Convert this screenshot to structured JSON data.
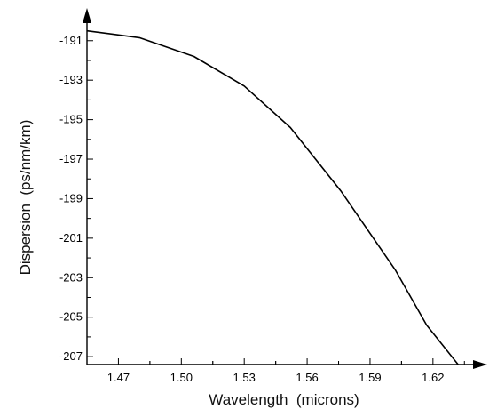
{
  "chart_data": {
    "type": "line",
    "title": "",
    "xlabel": "Wavelength  (microns)",
    "ylabel": "Dispersion  (ps/nm/km)",
    "xlim": [
      1.455,
      1.637
    ],
    "ylim": [
      -207.4,
      -190.2
    ],
    "xticks": [
      1.47,
      1.5,
      1.53,
      1.56,
      1.59,
      1.62
    ],
    "xtick_labels": [
      "1.47",
      "1.50",
      "1.53",
      "1.56",
      "1.59",
      "1.62"
    ],
    "yticks": [
      -191,
      -193,
      -195,
      -197,
      -199,
      -201,
      -203,
      -205,
      -207
    ],
    "ytick_labels": [
      "-191",
      "-193",
      "-195",
      "-197",
      "-199",
      "-201",
      "-203",
      "-205",
      "-207"
    ],
    "grid": false,
    "legend": "none",
    "series": [
      {
        "x": [
          1.455,
          1.48,
          1.506,
          1.53,
          1.552,
          1.576,
          1.602,
          1.617,
          1.632
        ],
        "y": [
          -190.5,
          -190.85,
          -191.8,
          -193.3,
          -195.4,
          -198.6,
          -202.6,
          -205.4,
          -207.4
        ]
      }
    ]
  },
  "colors": {
    "line": "#000000",
    "axis": "#000000",
    "background": "#ffffff"
  }
}
